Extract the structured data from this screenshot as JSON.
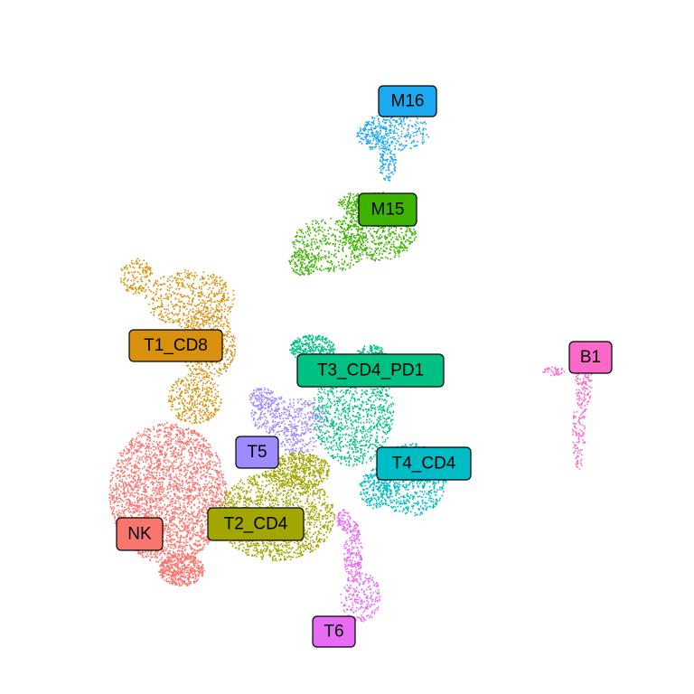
{
  "chart_data": {
    "type": "scatter",
    "title": "",
    "xlabel": "",
    "ylabel": "",
    "grid": false,
    "legend": "none",
    "clusters": [
      {
        "label": "M16",
        "color": "#1ba9ef"
      },
      {
        "label": "M15",
        "color": "#3db300"
      },
      {
        "label": "T1_CD8",
        "color": "#d8910c"
      },
      {
        "label": "T3_CD4_PD1",
        "color": "#00c183"
      },
      {
        "label": "B1",
        "color": "#fb68c8"
      },
      {
        "label": "T5",
        "color": "#9c8cff"
      },
      {
        "label": "T4_CD4",
        "color": "#00bcc6"
      },
      {
        "label": "NK",
        "color": "#f8766d"
      },
      {
        "label": "T2_CD4",
        "color": "#a3a500"
      },
      {
        "label": "T6",
        "color": "#e76bf3"
      }
    ]
  }
}
